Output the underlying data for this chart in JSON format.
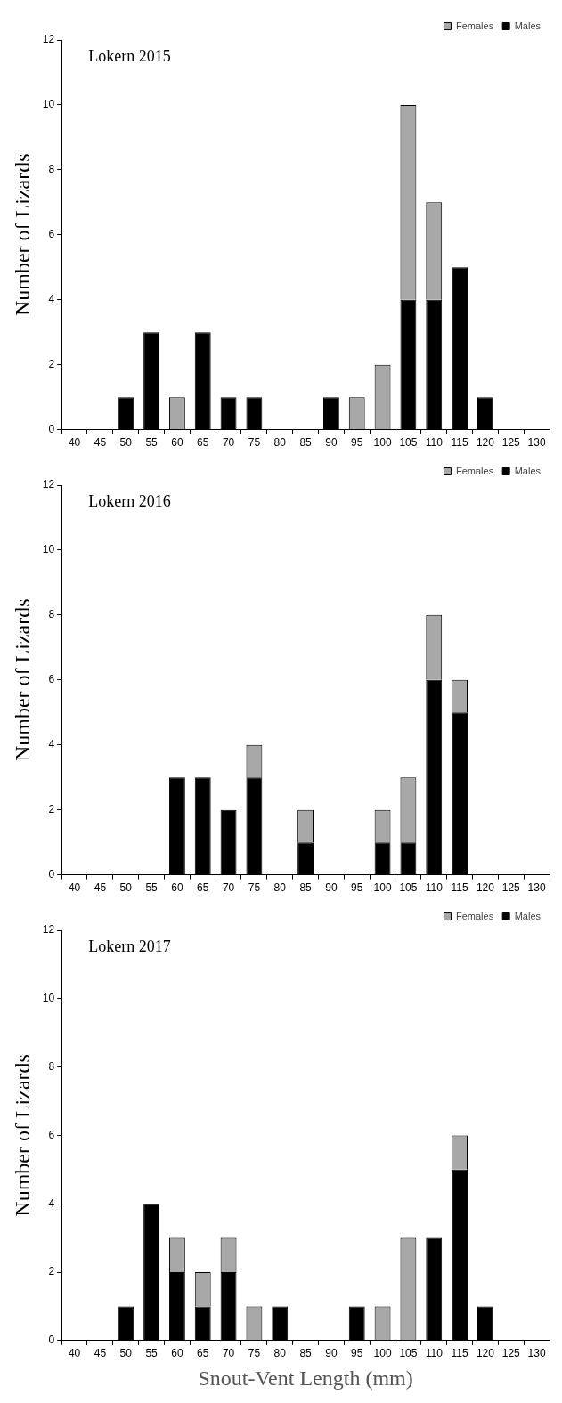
{
  "chart_data": [
    {
      "type": "bar",
      "title": "Lokern 2015",
      "ylabel": "Number of Lizards",
      "categories": [
        "40",
        "45",
        "50",
        "55",
        "60",
        "65",
        "70",
        "75",
        "80",
        "85",
        "90",
        "95",
        "100",
        "105",
        "110",
        "115",
        "120",
        "125",
        "130"
      ],
      "stacked": true,
      "ylim": [
        0,
        12
      ],
      "yticks": [
        0,
        2,
        4,
        6,
        8,
        10,
        12
      ],
      "grid": false,
      "legend": "top right",
      "series": [
        {
          "name": "Males",
          "color": "#000000",
          "values": [
            0,
            0,
            1,
            3,
            0,
            3,
            1,
            1,
            0,
            0,
            1,
            0,
            0,
            4,
            4,
            5,
            1,
            0,
            0
          ]
        },
        {
          "name": "Females",
          "color": "#a8a8a8",
          "values": [
            0,
            0,
            0,
            0,
            1,
            0,
            0,
            0,
            0,
            0,
            0,
            1,
            2,
            6,
            3,
            0,
            0,
            0,
            0
          ]
        }
      ]
    },
    {
      "type": "bar",
      "title": "Lokern 2016",
      "ylabel": "Number of Lizards",
      "categories": [
        "40",
        "45",
        "50",
        "55",
        "60",
        "65",
        "70",
        "75",
        "80",
        "85",
        "90",
        "95",
        "100",
        "105",
        "110",
        "115",
        "120",
        "125",
        "130"
      ],
      "stacked": true,
      "ylim": [
        0,
        12
      ],
      "yticks": [
        0,
        2,
        4,
        6,
        8,
        10,
        12
      ],
      "grid": false,
      "legend": "top right",
      "series": [
        {
          "name": "Males",
          "color": "#000000",
          "values": [
            0,
            0,
            0,
            0,
            3,
            3,
            2,
            3,
            0,
            1,
            0,
            0,
            1,
            1,
            6,
            5,
            0,
            0,
            0
          ]
        },
        {
          "name": "Females",
          "color": "#a8a8a8",
          "values": [
            0,
            0,
            0,
            0,
            0,
            0,
            0,
            1,
            0,
            1,
            0,
            0,
            1,
            2,
            2,
            1,
            0,
            0,
            0
          ]
        }
      ]
    },
    {
      "type": "bar",
      "title": "Lokern 2017",
      "ylabel": "Number of Lizards",
      "xlabel": "Snout-Vent Length (mm)",
      "categories": [
        "40",
        "45",
        "50",
        "55",
        "60",
        "65",
        "70",
        "75",
        "80",
        "85",
        "90",
        "95",
        "100",
        "105",
        "110",
        "115",
        "120",
        "125",
        "130"
      ],
      "stacked": true,
      "ylim": [
        0,
        12
      ],
      "yticks": [
        0,
        2,
        4,
        6,
        8,
        10,
        12
      ],
      "grid": false,
      "legend": "top right",
      "series": [
        {
          "name": "Males",
          "color": "#000000",
          "values": [
            0,
            0,
            1,
            4,
            2,
            1,
            2,
            0,
            1,
            0,
            0,
            1,
            0,
            0,
            3,
            5,
            1,
            0,
            0
          ]
        },
        {
          "name": "Females",
          "color": "#a8a8a8",
          "values": [
            0,
            0,
            0,
            0,
            1,
            1,
            1,
            1,
            0,
            0,
            0,
            0,
            1,
            3,
            0,
            1,
            0,
            0,
            0
          ]
        }
      ]
    }
  ]
}
